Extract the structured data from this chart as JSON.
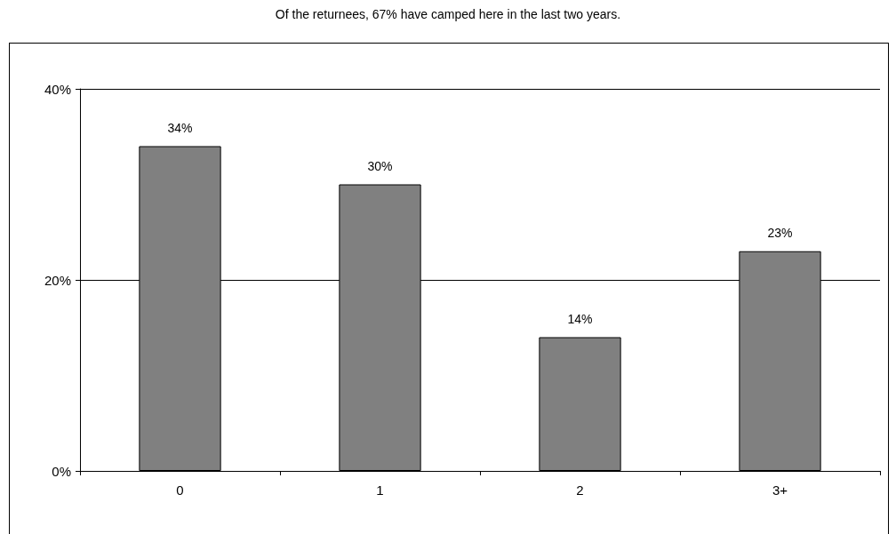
{
  "chart_data": {
    "type": "bar",
    "title": "Of the returnees, 67% have camped here in the last two years.",
    "categories": [
      "0",
      "1",
      "2",
      "3+"
    ],
    "values": [
      34,
      30,
      14,
      23
    ],
    "value_labels": [
      "34%",
      "30%",
      "14%",
      "23%"
    ],
    "color": "#808080",
    "ylim": [
      0,
      40
    ],
    "yticks": [
      {
        "value": 0,
        "label": "0%"
      },
      {
        "value": 20,
        "label": "20%"
      },
      {
        "value": 40,
        "label": "40%"
      }
    ],
    "grid": "y"
  }
}
